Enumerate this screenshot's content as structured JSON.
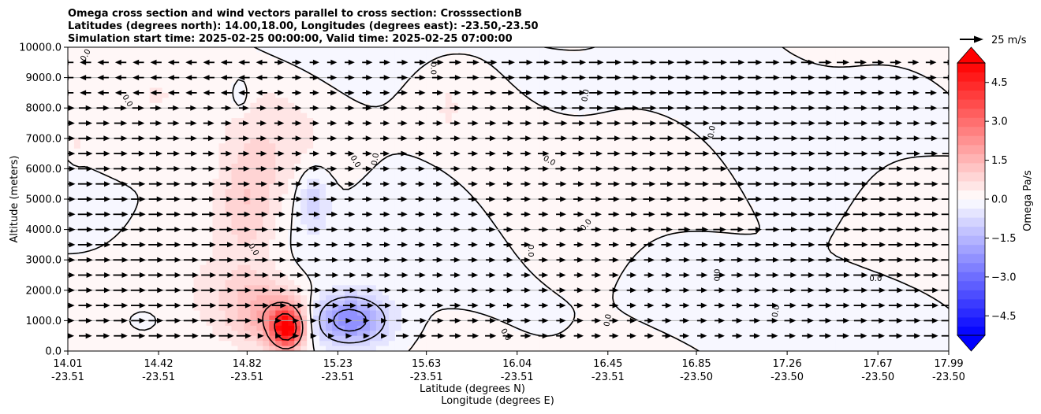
{
  "chart_data": {
    "type": "heatmap",
    "title_lines": [
      "Omega cross section and wind vectors parallel to cross section: CrosssectionB",
      "Latitudes (degrees north): 14.00,18.00, Longitudes (degrees east): -23.50,-23.50",
      "Simulation start time: 2025-02-25 00:00:00, Valid time: 2025-02-25 07:00:00"
    ],
    "ylabel": "Altitude (meters)",
    "xlabel_lines": [
      "Latitude (degrees N)",
      "Longitude (degrees E)"
    ],
    "ylim": [
      0,
      10000
    ],
    "xlim": [
      14.01,
      17.99
    ],
    "y_ticks": [
      {
        "v": 0,
        "label": "0.0"
      },
      {
        "v": 1000,
        "label": "1000.0"
      },
      {
        "v": 2000,
        "label": "2000.0"
      },
      {
        "v": 3000,
        "label": "3000.0"
      },
      {
        "v": 4000,
        "label": "4000.0"
      },
      {
        "v": 5000,
        "label": "5000.0"
      },
      {
        "v": 6000,
        "label": "6000.0"
      },
      {
        "v": 7000,
        "label": "7000.0"
      },
      {
        "v": 8000,
        "label": "8000.0"
      },
      {
        "v": 9000,
        "label": "9000.0"
      },
      {
        "v": 10000,
        "label": "10000.0"
      }
    ],
    "x_ticks": [
      {
        "lat": 14.01,
        "lat_label": "14.01",
        "lon_label": "-23.51"
      },
      {
        "lat": 14.42,
        "lat_label": "14.42",
        "lon_label": "-23.51"
      },
      {
        "lat": 14.82,
        "lat_label": "14.82",
        "lon_label": "-23.51"
      },
      {
        "lat": 15.23,
        "lat_label": "15.23",
        "lon_label": "-23.51"
      },
      {
        "lat": 15.63,
        "lat_label": "15.63",
        "lon_label": "-23.51"
      },
      {
        "lat": 16.04,
        "lat_label": "16.04",
        "lon_label": "-23.51"
      },
      {
        "lat": 16.45,
        "lat_label": "16.45",
        "lon_label": "-23.51"
      },
      {
        "lat": 16.85,
        "lat_label": "16.85",
        "lon_label": "-23.50"
      },
      {
        "lat": 17.26,
        "lat_label": "17.26",
        "lon_label": "-23.50"
      },
      {
        "lat": 17.67,
        "lat_label": "17.67",
        "lon_label": "-23.50"
      },
      {
        "lat": 17.99,
        "lat_label": "17.99",
        "lon_label": "-23.50"
      }
    ],
    "grid": "horizontal",
    "colorbar": {
      "label": "Omega Pa/s",
      "range": [
        -5.25,
        5.25
      ],
      "step": 0.35,
      "ticks": [
        {
          "v": 4.5,
          "label": "4.5"
        },
        {
          "v": 3.0,
          "label": "3.0"
        },
        {
          "v": 1.5,
          "label": "1.5"
        },
        {
          "v": 0.0,
          "label": "0.0"
        },
        {
          "v": -1.5,
          "label": "−1.5"
        },
        {
          "v": -3.0,
          "label": "−3.0"
        },
        {
          "v": -4.5,
          "label": "−4.5"
        }
      ],
      "extend": "both",
      "cmap": "bwr"
    },
    "quiver_key": {
      "label": "25 m/s",
      "speed": 25
    },
    "omega_features": [
      {
        "lat": 15.0,
        "alt": 750,
        "peak": 5.0,
        "slat": 0.05,
        "salt": 450
      },
      {
        "lat": 14.93,
        "alt": 1200,
        "peak": 1.4,
        "slat": 0.12,
        "salt": 700
      },
      {
        "lat": 15.28,
        "alt": 1000,
        "peak": -2.4,
        "slat": 0.12,
        "salt": 550
      },
      {
        "lat": 14.82,
        "alt": 4800,
        "peak": 1.0,
        "slat": 0.1,
        "salt": 1300
      },
      {
        "lat": 14.95,
        "alt": 7000,
        "peak": 0.5,
        "slat": 0.18,
        "salt": 1500
      },
      {
        "lat": 15.12,
        "alt": 5000,
        "peak": -1.0,
        "slat": 0.05,
        "salt": 700
      },
      {
        "lat": 14.8,
        "alt": 2000,
        "peak": 0.45,
        "slat": 0.15,
        "salt": 900
      },
      {
        "lat": 14.35,
        "alt": 1000,
        "peak": -0.5,
        "slat": 0.04,
        "salt": 200
      },
      {
        "lat": 14.79,
        "alt": 8400,
        "peak": -0.5,
        "slat": 0.03,
        "salt": 400
      },
      {
        "lat": 15.73,
        "alt": 8000,
        "peak": 0.5,
        "slat": 0.025,
        "salt": 450
      },
      {
        "lat": 14.42,
        "alt": 8400,
        "peak": 0.4,
        "slat": 0.03,
        "salt": 250
      },
      {
        "lat": 14.05,
        "alt": 6800,
        "peak": 0.3,
        "slat": 0.02,
        "salt": 300
      }
    ],
    "zero_contour_label": "0.0",
    "wind_vectors": {
      "description": "Horizontal wind vectors parallel to cross section; westward (leftward) near the top left, eastward elsewhere, weak near the surface jet",
      "lat_step": 0.0796,
      "alt_levels": [
        500,
        1000,
        1500,
        2000,
        2500,
        3000,
        3500,
        4000,
        4500,
        5000,
        5500,
        6000,
        6500,
        7000,
        7500,
        8000,
        8500,
        9000,
        9500
      ]
    }
  }
}
